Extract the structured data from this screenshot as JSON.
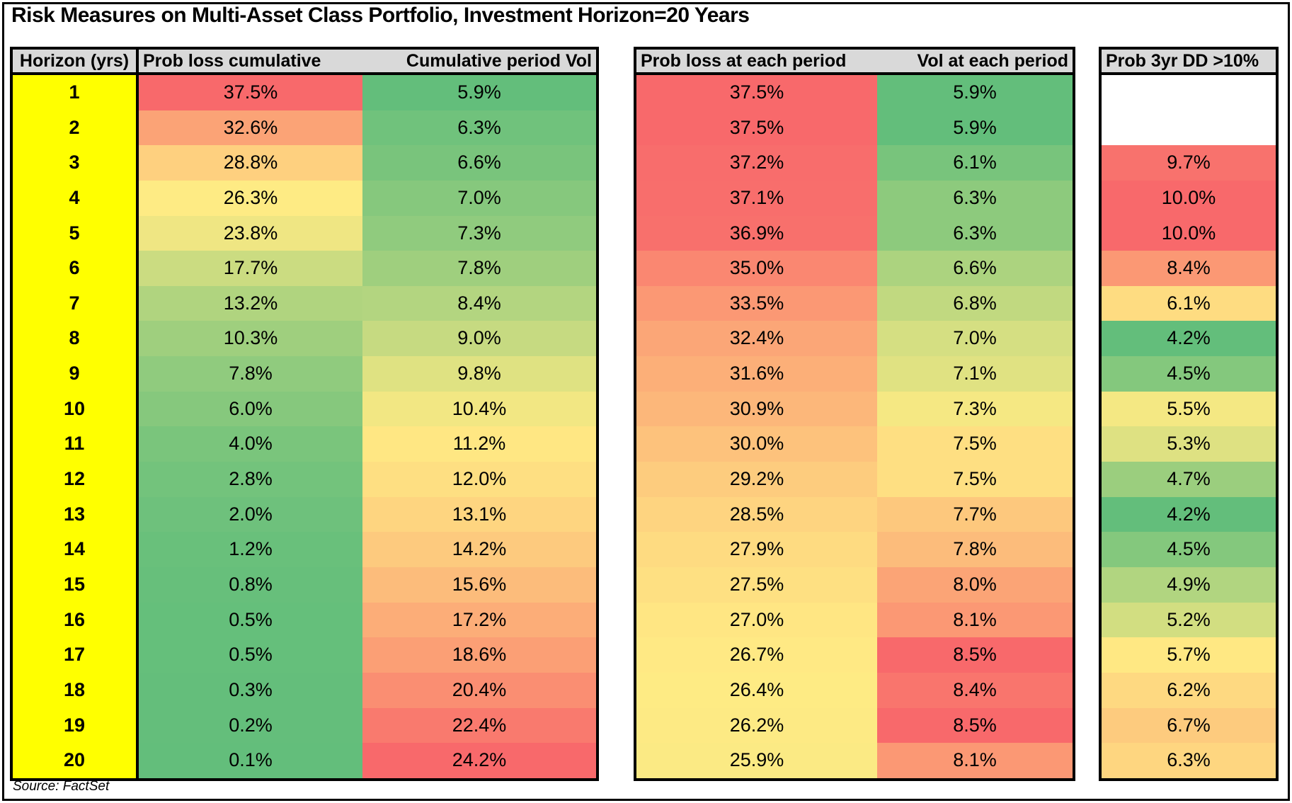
{
  "title": "Risk Measures on Multi-Asset Class Portfolio, Investment Horizon=20 Years",
  "source_note": "Source: FactSet",
  "colors": {
    "scale_low": "#63BE7B",
    "scale_mid": "#FFEB84",
    "scale_high": "#F8696B",
    "header_bg": "#D9D9D9",
    "horizon_col_bg": "#FFFF00",
    "empty_cell_bg": "#FFFFFF",
    "border": "#000000",
    "page_bg": "#FFFFFF"
  },
  "chart_data": {
    "type": "heatmap",
    "title": "Risk Measures on Multi-Asset Class Portfolio, Investment Horizon=20 Years",
    "source": "Source: FactSet",
    "value_format": "percent_1dp",
    "row_label_column": "Horizon (yrs)",
    "horizon_years": [
      1,
      2,
      3,
      4,
      5,
      6,
      7,
      8,
      9,
      10,
      11,
      12,
      13,
      14,
      15,
      16,
      17,
      18,
      19,
      20
    ],
    "columns": [
      {
        "label": "Prob loss cumulative",
        "key": "prob_loss_cumulative",
        "scale": "prob_loss_shared"
      },
      {
        "label": "Cumulative period Vol",
        "key": "cumulative_period_vol",
        "scale": "cumulative_vol"
      },
      {
        "label": "Prob loss at each period",
        "key": "prob_loss_each_period",
        "scale": "prob_loss_shared"
      },
      {
        "label": "Vol at each period",
        "key": "vol_each_period",
        "scale": "vol_each_period"
      },
      {
        "label": "Prob 3yr DD >10%",
        "key": "prob_3yr_dd_gt10",
        "scale": "prob_3yr_dd"
      }
    ],
    "values": {
      "prob_loss_cumulative": [
        37.5,
        32.6,
        28.8,
        26.3,
        23.8,
        17.7,
        13.2,
        10.3,
        7.8,
        6.0,
        4.0,
        2.8,
        2.0,
        1.2,
        0.8,
        0.5,
        0.5,
        0.3,
        0.2,
        0.1
      ],
      "cumulative_period_vol": [
        5.9,
        6.3,
        6.6,
        7.0,
        7.3,
        7.8,
        8.4,
        9.0,
        9.8,
        10.4,
        11.2,
        12.0,
        13.1,
        14.2,
        15.6,
        17.2,
        18.6,
        20.4,
        22.4,
        24.2
      ],
      "prob_loss_each_period": [
        37.5,
        37.5,
        37.2,
        37.1,
        36.9,
        35.0,
        33.5,
        32.4,
        31.6,
        30.9,
        30.0,
        29.2,
        28.5,
        27.9,
        27.5,
        27.0,
        26.7,
        26.4,
        26.2,
        25.9
      ],
      "vol_each_period": [
        5.9,
        5.9,
        6.1,
        6.3,
        6.3,
        6.6,
        6.8,
        7.0,
        7.1,
        7.3,
        7.5,
        7.5,
        7.7,
        7.8,
        8.0,
        8.1,
        8.5,
        8.4,
        8.5,
        8.1
      ],
      "prob_3yr_dd_gt10": [
        null,
        null,
        9.7,
        10.0,
        10.0,
        8.4,
        6.1,
        4.2,
        4.5,
        5.5,
        5.3,
        4.7,
        4.2,
        4.5,
        4.9,
        5.2,
        5.7,
        6.2,
        6.7,
        6.3
      ]
    },
    "color_scales": {
      "prob_loss_shared": {
        "min": 0.1,
        "mid": 26.55,
        "max": 37.5,
        "low_is": "green",
        "high_is": "red"
      },
      "cumulative_vol": {
        "min": 5.9,
        "mid": 10.8,
        "max": 24.2,
        "low_is": "green",
        "high_is": "red"
      },
      "vol_each_period": {
        "min": 5.9,
        "mid": 7.4,
        "max": 8.5,
        "low_is": "green",
        "high_is": "red"
      },
      "prob_3yr_dd": {
        "min": 4.2,
        "mid": 5.6,
        "max": 10.0,
        "low_is": "green",
        "high_is": "red"
      }
    },
    "legend_position": "none",
    "grid": false
  }
}
